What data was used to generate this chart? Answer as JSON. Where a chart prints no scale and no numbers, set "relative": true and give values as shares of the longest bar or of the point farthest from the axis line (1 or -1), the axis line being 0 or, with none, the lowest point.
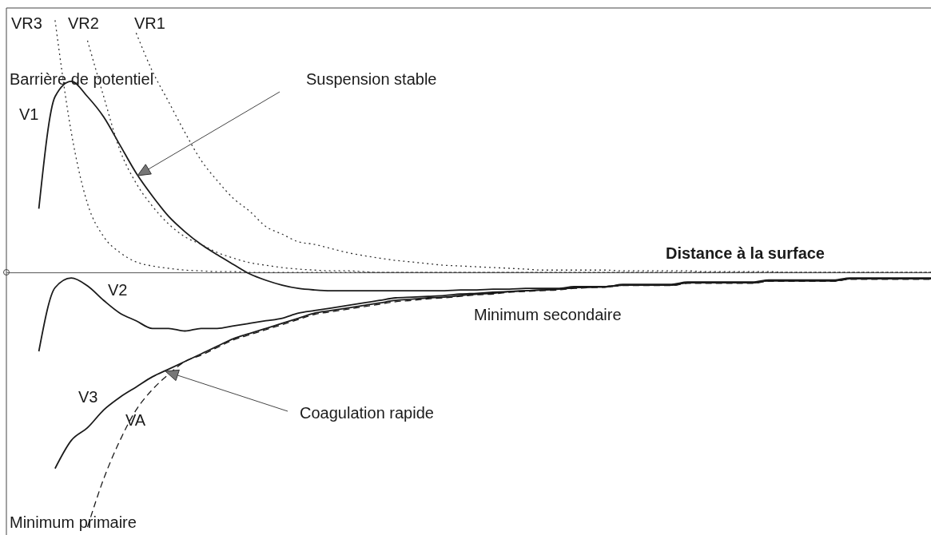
{
  "chart_data": {
    "type": "line",
    "relative": true,
    "xlabel": "Distance à la surface",
    "annotations": [
      "Barrière de potentiel",
      "Suspension stable",
      "Minimum secondaire",
      "Coagulation rapide",
      "Minimum primaire"
    ],
    "categories": [
      null,
      null,
      null,
      null,
      null,
      null,
      null,
      null,
      null,
      null,
      null,
      null,
      null,
      null,
      null,
      null,
      null,
      null,
      null,
      null,
      null,
      null,
      null,
      null,
      null,
      null,
      null,
      null,
      null,
      null,
      null,
      null,
      null,
      null,
      null,
      null,
      null,
      null,
      null,
      null,
      null,
      null,
      null,
      null,
      null,
      null,
      null,
      null,
      null,
      null,
      null,
      null,
      null,
      null,
      null,
      null,
      null,
      null
    ],
    "series": [
      {
        "name": "V1",
        "color": "#1a1a1a",
        "line_style": "solid",
        "values": [
          null,
          null,
          0.25,
          0.69,
          0.75,
          0.69,
          0.61,
          0.5,
          0.39,
          0.3,
          0.22,
          0.16,
          0.11,
          0.069,
          0.031,
          -0.006,
          -0.031,
          -0.05,
          -0.063,
          -0.069,
          -0.072,
          -0.072,
          -0.072,
          -0.072,
          -0.072,
          -0.072,
          -0.072,
          -0.072,
          -0.069,
          -0.069,
          -0.066,
          -0.066,
          -0.063,
          -0.063,
          -0.063,
          -0.056,
          -0.056,
          -0.056,
          -0.047,
          -0.047,
          -0.047,
          -0.047,
          -0.038,
          -0.038,
          -0.038,
          -0.038,
          -0.038,
          -0.03,
          -0.03,
          -0.03,
          -0.03,
          -0.03,
          -0.022,
          -0.022,
          -0.022,
          -0.022,
          -0.022,
          -0.022
        ]
      },
      {
        "name": "V2",
        "color": "#1a1a1a",
        "line_style": "solid",
        "values": [
          null,
          null,
          -0.31,
          -0.06,
          -0.022,
          -0.053,
          -0.11,
          -0.16,
          -0.19,
          -0.22,
          -0.22,
          -0.23,
          -0.22,
          -0.22,
          -0.21,
          -0.2,
          -0.19,
          -0.18,
          -0.16,
          -0.15,
          -0.14,
          -0.13,
          -0.12,
          -0.11,
          -0.1,
          -0.097,
          -0.094,
          -0.091,
          -0.085,
          -0.082,
          -0.078,
          -0.075,
          -0.072,
          -0.069,
          -0.066,
          -0.06,
          -0.058,
          -0.056,
          -0.05,
          -0.05,
          -0.05,
          -0.05,
          -0.041,
          -0.041,
          -0.041,
          -0.041,
          -0.041,
          -0.033,
          -0.033,
          -0.033,
          -0.033,
          -0.033,
          -0.025,
          -0.025,
          -0.025,
          -0.025,
          -0.025,
          -0.025
        ]
      },
      {
        "name": "V3",
        "color": "#1a1a1a",
        "line_style": "solid",
        "values": [
          null,
          null,
          null,
          -0.77,
          -0.66,
          -0.61,
          -0.54,
          -0.49,
          -0.45,
          -0.41,
          -0.38,
          -0.35,
          -0.32,
          -0.29,
          -0.26,
          -0.24,
          -0.22,
          -0.2,
          -0.18,
          -0.16,
          -0.15,
          -0.14,
          -0.13,
          -0.12,
          -0.11,
          -0.105,
          -0.1,
          -0.097,
          -0.091,
          -0.085,
          -0.082,
          -0.075,
          -0.072,
          -0.069,
          -0.066,
          -0.06,
          -0.058,
          -0.056,
          -0.05,
          -0.05,
          -0.05,
          -0.05,
          -0.041,
          -0.041,
          -0.041,
          -0.041,
          -0.041,
          -0.033,
          -0.033,
          -0.033,
          -0.033,
          -0.033,
          -0.025,
          -0.025,
          -0.025,
          -0.025,
          -0.025,
          -0.025
        ]
      },
      {
        "name": "VA",
        "color": "#1a1a1a",
        "line_style": "dashed",
        "values": [
          null,
          null,
          null,
          null,
          null,
          -1,
          -0.81,
          -0.66,
          -0.54,
          -0.46,
          -0.4,
          -0.35,
          -0.325,
          -0.295,
          -0.265,
          -0.245,
          -0.225,
          -0.205,
          -0.185,
          -0.165,
          -0.155,
          -0.145,
          -0.135,
          -0.125,
          -0.115,
          -0.11,
          -0.104,
          -0.1,
          -0.094,
          -0.088,
          -0.085,
          -0.078,
          -0.075,
          -0.072,
          -0.069,
          -0.063,
          -0.06,
          -0.058,
          -0.052,
          -0.052,
          -0.052,
          -0.052,
          -0.043,
          -0.043,
          -0.043,
          -0.043,
          -0.043,
          -0.035,
          -0.035,
          -0.035,
          -0.035,
          -0.035,
          -0.027,
          -0.027,
          -0.027,
          -0.027,
          -0.027,
          -0.027
        ]
      },
      {
        "name": "VR1",
        "color": "#333333",
        "line_style": "dotted",
        "values": [
          null,
          null,
          null,
          null,
          null,
          null,
          null,
          null,
          0.94,
          0.79,
          0.67,
          0.55,
          0.44,
          0.36,
          0.29,
          0.24,
          0.18,
          0.15,
          0.12,
          0.11,
          0.094,
          0.078,
          0.066,
          0.056,
          0.047,
          0.041,
          0.034,
          0.028,
          0.025,
          0.022,
          0.019,
          0.016,
          0.013,
          0.009,
          0.009,
          0.009,
          0.009,
          0.009,
          0.006,
          0.006,
          0.006,
          0.006,
          0.006,
          0.003,
          0.003,
          0.003,
          0.003,
          0.003,
          0,
          0,
          0,
          0,
          0,
          0,
          0,
          0,
          0,
          0
        ]
      },
      {
        "name": "VR2",
        "color": "#333333",
        "line_style": "dotted",
        "values": [
          null,
          null,
          null,
          null,
          null,
          0.91,
          0.69,
          0.48,
          0.35,
          0.26,
          0.19,
          0.14,
          0.11,
          0.078,
          0.056,
          0.038,
          0.028,
          0.019,
          0.013,
          0.009,
          0.006,
          0.006,
          0.003,
          0,
          0,
          0,
          0,
          0,
          0,
          0,
          0,
          0,
          0,
          0,
          0,
          0,
          0,
          0,
          0,
          0,
          0,
          0,
          0,
          0,
          0,
          0,
          0,
          0,
          0,
          0,
          0,
          0,
          0,
          0,
          0,
          0,
          0,
          0
        ]
      },
      {
        "name": "VR3",
        "color": "#333333",
        "line_style": "dotted",
        "values": [
          null,
          null,
          null,
          0.99,
          0.55,
          0.27,
          0.14,
          0.078,
          0.041,
          0.025,
          0.016,
          0.009,
          0.006,
          0.003,
          0.003,
          0,
          0,
          0,
          0,
          0,
          0,
          0,
          0,
          0,
          0,
          0,
          0,
          0,
          0,
          0,
          0,
          0,
          0,
          0,
          0,
          0,
          0,
          0,
          0,
          0,
          0,
          0,
          0,
          0,
          0,
          0,
          0,
          0,
          0,
          0,
          0,
          0,
          0,
          0,
          0,
          0,
          0,
          0
        ]
      }
    ]
  }
}
